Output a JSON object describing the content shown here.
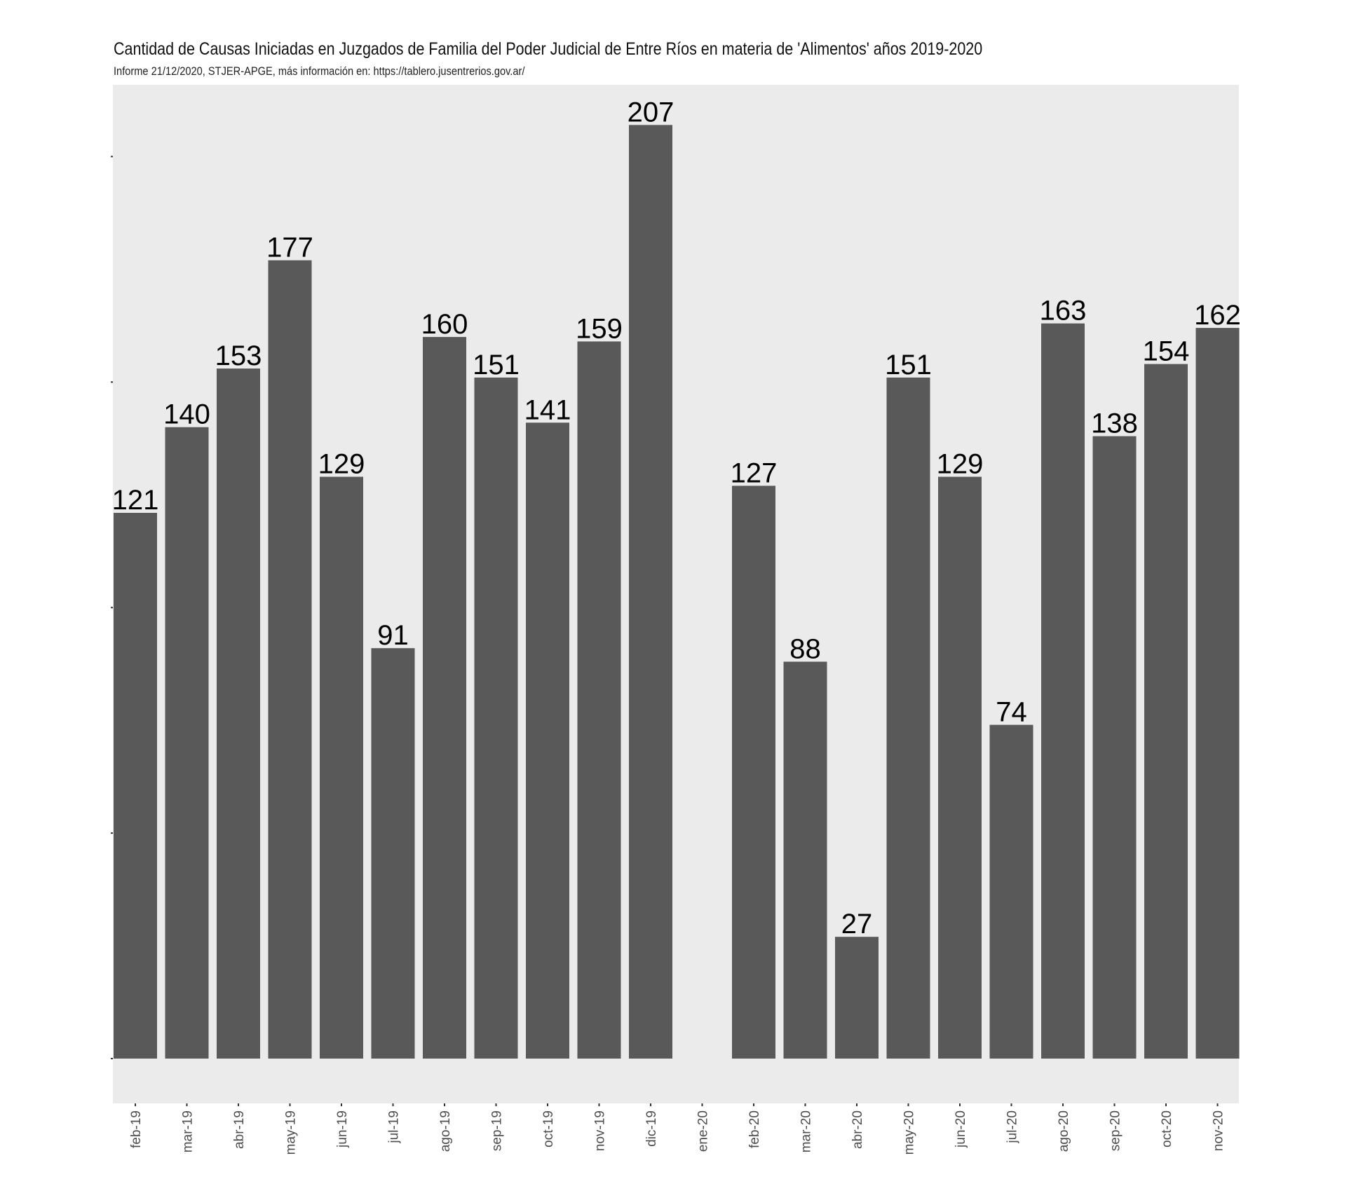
{
  "chart_data": {
    "type": "bar",
    "title": "Cantidad de Causas Iniciadas en Juzgados de Familia del Poder Judicial de Entre Ríos en materia de 'Alimentos' años 2019-2020",
    "subtitle": "Informe 21/12/2020, STJER-APGE, más información en: https://tablero.jusentrerios.gov.ar/",
    "xlabel": "",
    "ylabel": "",
    "ylim": [
      0,
      217
    ],
    "y_ticks": [
      0,
      50,
      100,
      150,
      200
    ],
    "grid": false,
    "legend": "none",
    "bar_color": "#595959",
    "panel_color": "#ebebeb",
    "categories": [
      "feb-19",
      "mar-19",
      "abr-19",
      "may-19",
      "jun-19",
      "jul-19",
      "ago-19",
      "sep-19",
      "oct-19",
      "nov-19",
      "dic-19",
      "ene-20",
      "feb-20",
      "mar-20",
      "abr-20",
      "may-20",
      "jun-20",
      "jul-20",
      "ago-20",
      "sep-20",
      "oct-20",
      "nov-20"
    ],
    "values": [
      121,
      140,
      153,
      177,
      129,
      91,
      160,
      151,
      141,
      159,
      207,
      null,
      127,
      88,
      27,
      151,
      129,
      74,
      163,
      138,
      154,
      162
    ]
  }
}
